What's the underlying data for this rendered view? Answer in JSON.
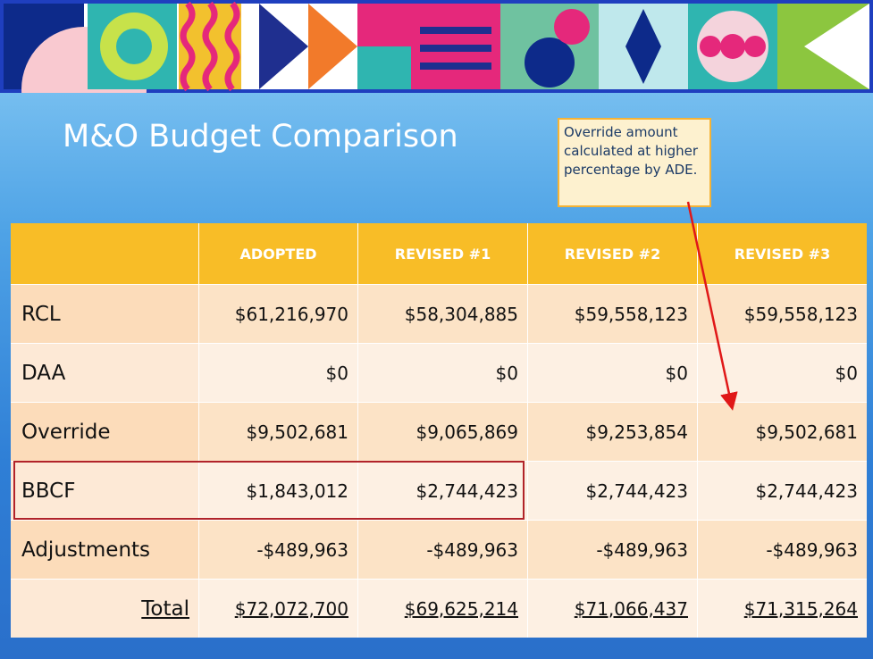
{
  "header": {
    "title": "M&O Budget Comparison"
  },
  "callout": "Override amount calculated at higher percentage by ADE.",
  "table": {
    "columns": [
      "ADOPTED",
      "REVISED #1",
      "REVISED #2",
      "REVISED #3"
    ],
    "rows": [
      [
        "RCL",
        "$61,216,970",
        "$58,304,885",
        "$59,558,123",
        "$59,558,123"
      ],
      [
        "DAA",
        "$0",
        "$0",
        "$0",
        "$0"
      ],
      [
        "Override",
        "$9,502,681",
        "$9,065,869",
        "$9,253,854",
        "$9,502,681"
      ],
      [
        "BBCF",
        "$1,843,012",
        "$2,744,423",
        "$2,744,423",
        "$2,744,423"
      ],
      [
        "Adjustments",
        "-$489,963",
        "-$489,963",
        "-$489,963",
        "-$489,963"
      ],
      [
        "Total",
        "$72,072,700",
        "$69,625,214",
        "$71,066,437",
        "$71,315,264"
      ]
    ]
  }
}
